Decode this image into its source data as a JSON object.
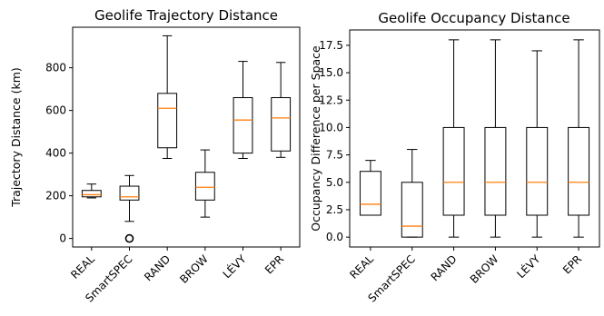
{
  "chart_data": [
    {
      "type": "box",
      "title": "Geolife Trajectory Distance",
      "xlabel": "",
      "ylabel": "Trajectory Distance (km)",
      "categories": [
        "REAL",
        "SmartSPEC",
        "RAND",
        "BROW",
        "LÉVY",
        "EPR"
      ],
      "yticks": [
        "0",
        "200",
        "400",
        "600",
        "800"
      ],
      "ylim": [
        -40,
        990
      ],
      "boxes": [
        {
          "whislo": 190,
          "q1": 195,
          "med": 205,
          "q3": 225,
          "whishi": 255,
          "fliers": []
        },
        {
          "whislo": 80,
          "q1": 180,
          "med": 195,
          "q3": 245,
          "whishi": 295,
          "fliers": [
            0
          ]
        },
        {
          "whislo": 375,
          "q1": 425,
          "med": 610,
          "q3": 680,
          "whishi": 950,
          "fliers": []
        },
        {
          "whislo": 100,
          "q1": 180,
          "med": 240,
          "q3": 310,
          "whishi": 415,
          "fliers": []
        },
        {
          "whislo": 375,
          "q1": 400,
          "med": 555,
          "q3": 660,
          "whishi": 830,
          "fliers": []
        },
        {
          "whislo": 380,
          "q1": 410,
          "med": 565,
          "q3": 660,
          "whishi": 825,
          "fliers": []
        }
      ],
      "grid": false
    },
    {
      "type": "box",
      "title": "Geolife Occupancy Distance",
      "xlabel": "",
      "ylabel": "Occupancy Difference per Space",
      "categories": [
        "REAL",
        "SmartSPEC",
        "RAND",
        "BROW",
        "LÉVY",
        "EPR"
      ],
      "yticks": [
        "0.0",
        "2.5",
        "5.0",
        "7.5",
        "10.0",
        "12.5",
        "15.0",
        "17.5"
      ],
      "ylim": [
        -0.9,
        18.9
      ],
      "boxes": [
        {
          "whislo": 2,
          "q1": 2,
          "med": 3,
          "q3": 6,
          "whishi": 7,
          "fliers": []
        },
        {
          "whislo": 0,
          "q1": 0,
          "med": 1,
          "q3": 5,
          "whishi": 8,
          "fliers": []
        },
        {
          "whislo": 0,
          "q1": 2,
          "med": 5,
          "q3": 10,
          "whishi": 18,
          "fliers": []
        },
        {
          "whislo": 0,
          "q1": 2,
          "med": 5,
          "q3": 10,
          "whishi": 18,
          "fliers": []
        },
        {
          "whislo": 0,
          "q1": 2,
          "med": 5,
          "q3": 10,
          "whishi": 17,
          "fliers": []
        },
        {
          "whislo": 0,
          "q1": 2,
          "med": 5,
          "q3": 10,
          "whishi": 18,
          "fliers": []
        }
      ],
      "grid": false
    }
  ],
  "colors": {
    "box": "#000000",
    "median": "#ff7f0e",
    "axis": "#000000"
  }
}
